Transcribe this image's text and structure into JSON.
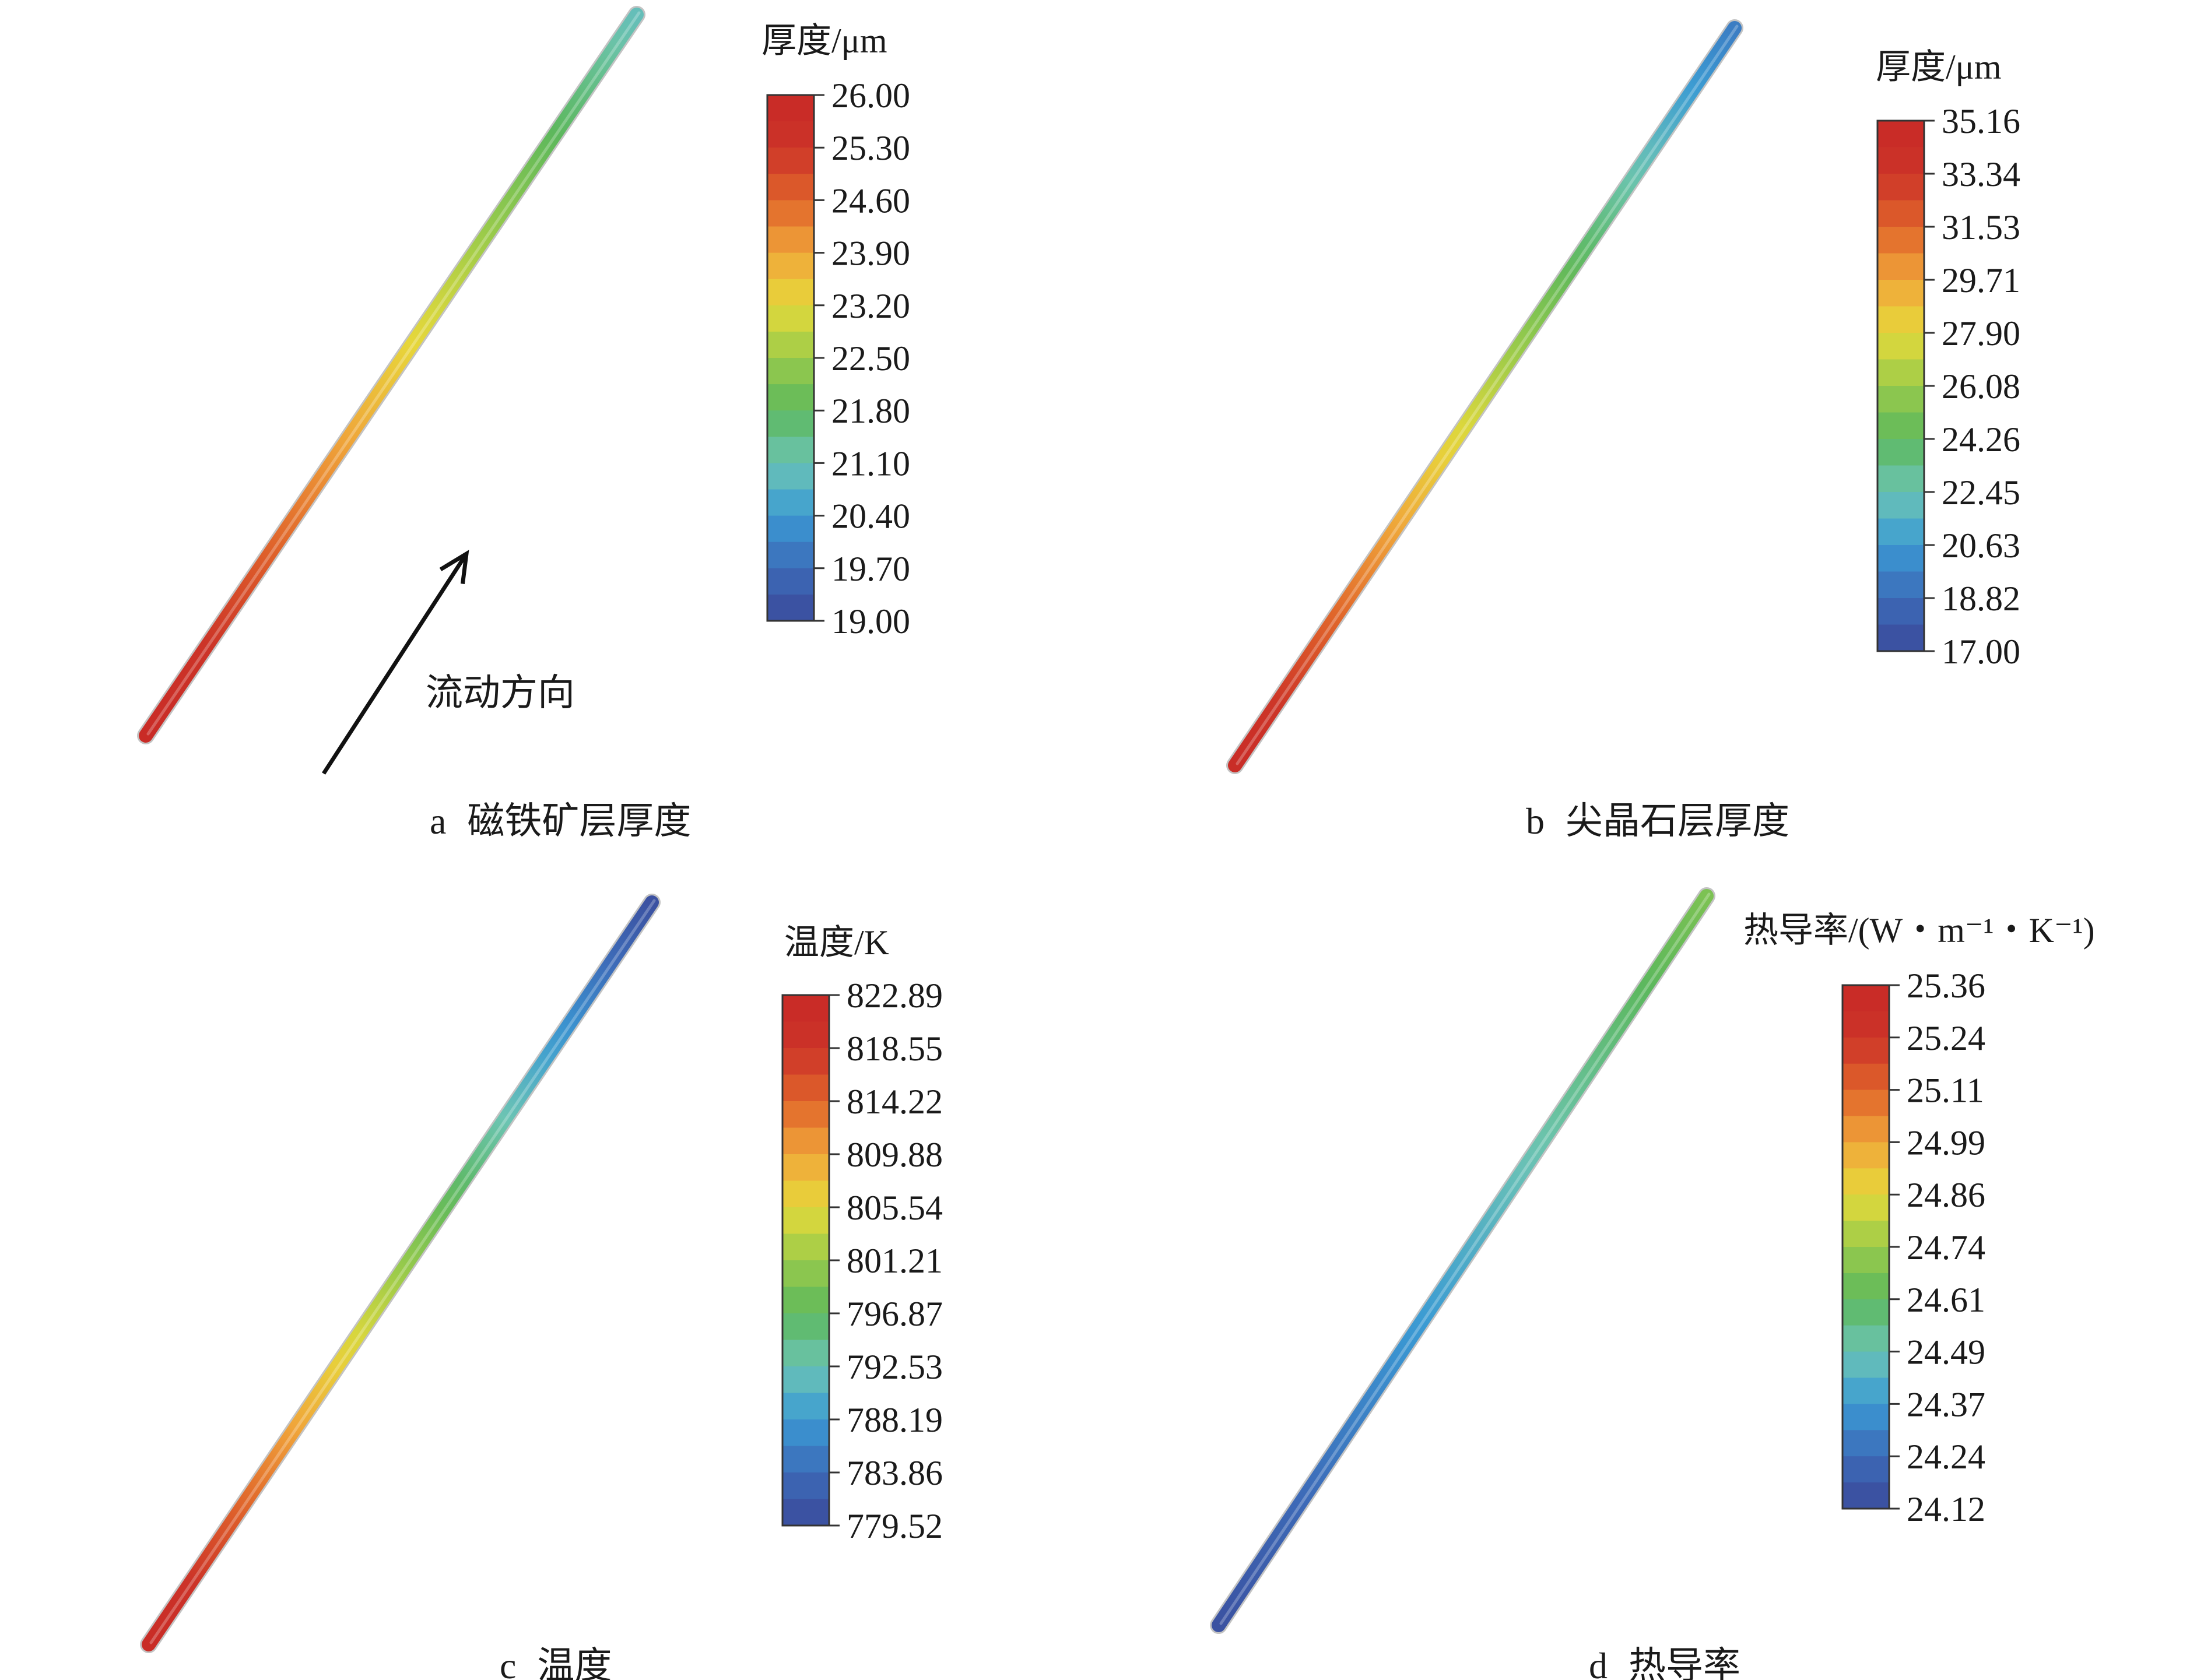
{
  "figure": {
    "panels": [
      {
        "id": "a",
        "caption_letter": "a",
        "caption_text": "磁铁矿层厚度",
        "colorbar_title": "厚度/μm",
        "ticks": [
          "26.00",
          "25.30",
          "24.60",
          "23.90",
          "23.20",
          "22.50",
          "21.80",
          "21.10",
          "20.40",
          "19.70",
          "19.00"
        ],
        "min": 19.0,
        "max": 26.0,
        "tube_value_start": 25.9,
        "tube_value_end": 21.0,
        "annotation": "流动方向"
      },
      {
        "id": "b",
        "caption_letter": "b",
        "caption_text": "尖晶石层厚度",
        "colorbar_title": "厚度/μm",
        "ticks": [
          "35.16",
          "33.34",
          "31.53",
          "29.71",
          "27.90",
          "26.08",
          "24.26",
          "22.45",
          "20.63",
          "18.82",
          "17.00"
        ],
        "min": 17.0,
        "max": 35.16,
        "tube_value_start": 34.5,
        "tube_value_end": 19.5
      },
      {
        "id": "c",
        "caption_letter": "c",
        "caption_text": "温度",
        "colorbar_title": "温度/K",
        "ticks": [
          "822.89",
          "818.55",
          "814.22",
          "809.88",
          "805.54",
          "801.21",
          "796.87",
          "792.53",
          "788.19",
          "783.86",
          "779.52"
        ],
        "min": 779.52,
        "max": 822.89,
        "tube_value_start": 822.0,
        "tube_value_end": 780.5
      },
      {
        "id": "d",
        "caption_letter": "d",
        "caption_text": "热导率",
        "colorbar_title": "热导率/(W・m⁻¹・K⁻¹)",
        "ticks": [
          "25.36",
          "25.24",
          "25.11",
          "24.99",
          "24.86",
          "24.74",
          "24.61",
          "24.49",
          "24.37",
          "24.24",
          "24.12"
        ],
        "min": 24.12,
        "max": 25.36,
        "tube_value_start": 24.15,
        "tube_value_end": 24.68
      }
    ],
    "colormap": [
      "#3a4a9a",
      "#3d6bb8",
      "#3a9ad4",
      "#6cc4b4",
      "#5cb85c",
      "#9acb4a",
      "#e6d93a",
      "#f0a53a",
      "#e0642a",
      "#cc3328",
      "#c82a26"
    ]
  }
}
